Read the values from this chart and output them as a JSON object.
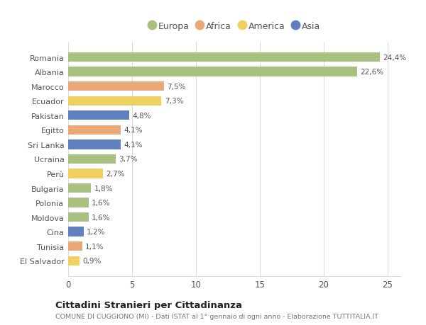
{
  "countries": [
    "Romania",
    "Albania",
    "Marocco",
    "Ecuador",
    "Pakistan",
    "Egitto",
    "Sri Lanka",
    "Ucraina",
    "Perù",
    "Bulgaria",
    "Polonia",
    "Moldova",
    "Cina",
    "Tunisia",
    "El Salvador"
  ],
  "values": [
    24.4,
    22.6,
    7.5,
    7.3,
    4.8,
    4.1,
    4.1,
    3.7,
    2.7,
    1.8,
    1.6,
    1.6,
    1.2,
    1.1,
    0.9
  ],
  "continents": [
    "Europa",
    "Europa",
    "Africa",
    "America",
    "Asia",
    "Africa",
    "Asia",
    "Europa",
    "America",
    "Europa",
    "Europa",
    "Europa",
    "Asia",
    "Africa",
    "America"
  ],
  "continent_colors": {
    "Europa": "#a8c080",
    "Africa": "#e8a878",
    "America": "#f0d060",
    "Asia": "#6080c0"
  },
  "legend_order": [
    "Europa",
    "Africa",
    "America",
    "Asia"
  ],
  "legend_colors": [
    "#a8c080",
    "#e8a878",
    "#f0d060",
    "#6080c0"
  ],
  "title": "Cittadini Stranieri per Cittadinanza",
  "subtitle": "COMUNE DI CUGGIONO (MI) - Dati ISTAT al 1° gennaio di ogni anno - Elaborazione TUTTITALIA.IT",
  "xlim": [
    0,
    26
  ],
  "xticks": [
    0,
    5,
    10,
    15,
    20,
    25
  ],
  "figure_bg": "#ffffff",
  "axes_bg": "#ffffff",
  "grid_color": "#dddddd"
}
